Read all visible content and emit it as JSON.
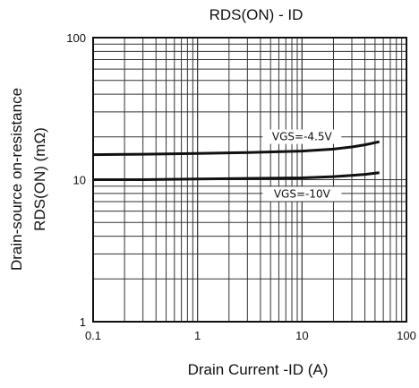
{
  "chart_data": {
    "type": "line",
    "title": "RDS(ON) - ID",
    "xlabel": "Drain Current  -ID  (A)",
    "ylabel_line1": "Drain-source on-resistance",
    "ylabel_line2": "RDS(ON)  (mΩ)",
    "x_scale": "log",
    "y_scale": "log",
    "xlim": [
      0.1,
      100
    ],
    "ylim": [
      1,
      100
    ],
    "x_ticks": [
      {
        "value": 0.1,
        "label": "0.1"
      },
      {
        "value": 1,
        "label": "1"
      },
      {
        "value": 10,
        "label": "10"
      },
      {
        "value": 100,
        "label": "100"
      }
    ],
    "y_ticks": [
      {
        "value": 1,
        "label": "1"
      },
      {
        "value": 10,
        "label": "10"
      },
      {
        "value": 100,
        "label": "100"
      }
    ],
    "grid": true,
    "series": [
      {
        "name": "VGS=-4.5V",
        "x": [
          0.1,
          0.3,
          1,
          3,
          10,
          20,
          30,
          40,
          55
        ],
        "y": [
          15,
          15.1,
          15.3,
          15.5,
          15.9,
          16.4,
          17.0,
          17.6,
          18.5
        ]
      },
      {
        "name": "VGS=-10V",
        "x": [
          0.1,
          0.3,
          1,
          3,
          10,
          20,
          30,
          40,
          55
        ],
        "y": [
          10,
          10.0,
          10.1,
          10.2,
          10.3,
          10.5,
          10.7,
          10.9,
          11.2
        ]
      }
    ],
    "colors": {
      "line": "#111111",
      "grid": "#333333",
      "background": "#ffffff"
    }
  }
}
